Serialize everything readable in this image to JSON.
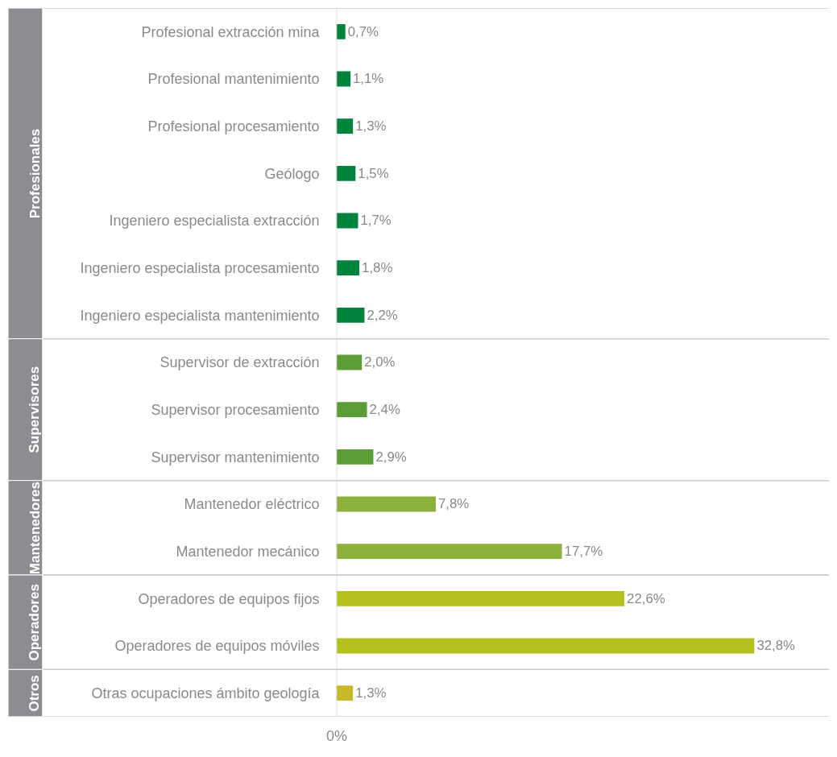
{
  "chart_data": {
    "type": "bar",
    "orientation": "horizontal",
    "categories": [
      "Profesional extracción mina",
      "Profesional mantenimiento",
      "Profesional procesamiento",
      "Geólogo",
      "Ingeniero especialista extracción",
      "Ingeniero especialista procesamiento",
      "Ingeniero especialista mantenimiento",
      "Supervisor de extracción",
      "Supervisor procesamiento",
      "Supervisor mantenimiento",
      "Mantenedor eléctrico",
      "Mantenedor mecánico",
      "Operadores de equipos fijos",
      "Operadores de equipos móviles",
      "Otras ocupaciones ámbito geología"
    ],
    "series": [
      {
        "color": "#00843d",
        "values": [
          0.7,
          1.1,
          1.3,
          1.5,
          1.7,
          1.8,
          2.2,
          null,
          null,
          null,
          null,
          null,
          null,
          null,
          null
        ],
        "value_labels": [
          "0,7%",
          "1,1%",
          "1,3%",
          "1,5%",
          "1,7%",
          "1,8%",
          "2,2%",
          null,
          null,
          null,
          null,
          null,
          null,
          null,
          null
        ]
      },
      {
        "color": "#5c9e35",
        "values": [
          null,
          null,
          null,
          null,
          null,
          null,
          null,
          2.0,
          2.4,
          2.9,
          null,
          null,
          null,
          null,
          null
        ],
        "value_labels": [
          null,
          null,
          null,
          null,
          null,
          null,
          null,
          "2,0%",
          "2,4%",
          "2,9%",
          null,
          null,
          null,
          null,
          null
        ]
      },
      {
        "color": "#8cb23c",
        "values": [
          null,
          null,
          null,
          null,
          null,
          null,
          null,
          null,
          null,
          null,
          7.8,
          17.7,
          null,
          null,
          null
        ],
        "value_labels": [
          null,
          null,
          null,
          null,
          null,
          null,
          null,
          null,
          null,
          null,
          "7,8%",
          "17,7%",
          null,
          null,
          null
        ]
      },
      {
        "color": "#b4c01e",
        "values": [
          null,
          null,
          null,
          null,
          null,
          null,
          null,
          null,
          null,
          null,
          null,
          null,
          22.6,
          32.8,
          null
        ],
        "value_labels": [
          null,
          null,
          null,
          null,
          null,
          null,
          null,
          null,
          null,
          null,
          null,
          null,
          "22,6%",
          "32,8%",
          null
        ]
      },
      {
        "color": "#c8b92a",
        "values": [
          null,
          null,
          null,
          null,
          null,
          null,
          null,
          null,
          null,
          null,
          null,
          null,
          null,
          null,
          1.3
        ],
        "value_labels": [
          null,
          null,
          null,
          null,
          null,
          null,
          null,
          null,
          null,
          null,
          null,
          null,
          null,
          null,
          "1,3%"
        ]
      }
    ],
    "annotations": [
      "Profesionales",
      "Supervisores",
      "Mantenedores",
      "Operadores",
      "Otros",
      "0%"
    ],
    "legend": false
  }
}
